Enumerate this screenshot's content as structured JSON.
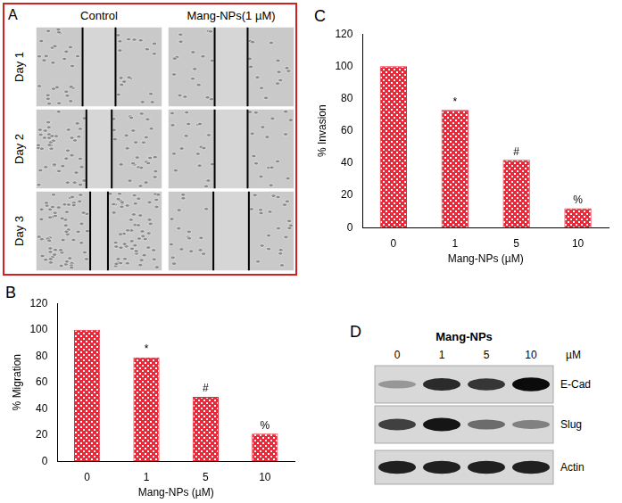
{
  "chart_data": [
    {
      "panel": "B",
      "type": "bar",
      "categories": [
        "0",
        "1",
        "5",
        "10"
      ],
      "values": [
        100,
        79,
        49,
        21
      ],
      "color": "#e8293a",
      "x_label": "Mang-NPs (µM)",
      "y_label": "% Migration",
      "ylim": [
        0,
        120
      ],
      "yticks": [
        0,
        20,
        40,
        60,
        80,
        100,
        120
      ],
      "grid": false,
      "annotations": [
        {
          "category": "1",
          "text": "*"
        },
        {
          "category": "5",
          "text": "#"
        },
        {
          "category": "10",
          "text": "%"
        }
      ]
    },
    {
      "panel": "C",
      "type": "bar",
      "categories": [
        "0",
        "1",
        "5",
        "10"
      ],
      "values": [
        100,
        73,
        42,
        12
      ],
      "color": "#e8293a",
      "x_label": "Mang-NPs (µM)",
      "y_label": "% Invasion",
      "ylim": [
        0,
        120
      ],
      "yticks": [
        0,
        20,
        40,
        60,
        80,
        100,
        120
      ],
      "grid": false,
      "annotations": [
        {
          "category": "1",
          "text": "*"
        },
        {
          "category": "5",
          "text": "#"
        },
        {
          "category": "10",
          "text": "%"
        }
      ]
    }
  ],
  "wound_healing": {
    "panel": "A",
    "columns": [
      "Control",
      "Mang-NPs(1 µM)"
    ],
    "rows": [
      "Day 1",
      "Day 2",
      "Day 3"
    ]
  },
  "western_blot": {
    "panel": "D",
    "treatment": "Mang-NPs",
    "lanes": [
      "0",
      "1",
      "5",
      "10"
    ],
    "unit": "µM",
    "proteins": [
      {
        "name": "E-Cad",
        "intensity": [
          0.3,
          0.8,
          0.75,
          0.95
        ]
      },
      {
        "name": "Slug",
        "intensity": [
          0.7,
          0.9,
          0.5,
          0.4
        ]
      },
      {
        "name": "Actin",
        "intensity": [
          0.85,
          0.85,
          0.85,
          0.85
        ]
      }
    ]
  }
}
